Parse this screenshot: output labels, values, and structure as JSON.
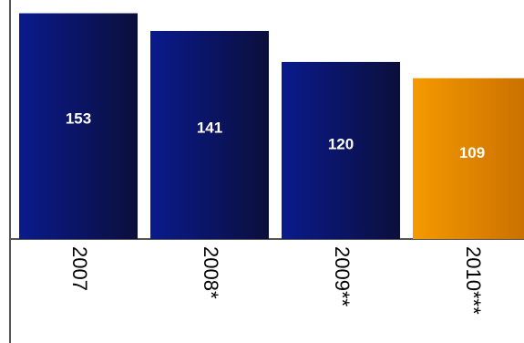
{
  "chart_data": {
    "type": "bar",
    "categories": [
      "2007",
      "2008*",
      "2009**",
      "2010***"
    ],
    "values": [
      153,
      141,
      120,
      109
    ],
    "data_labels": [
      "153",
      "141",
      "120",
      "109"
    ],
    "ylim": [
      0,
      162
    ],
    "grid": false,
    "title": "",
    "xlabel": "",
    "ylabel": "",
    "colors": {
      "bar_gradient_start": "#0a1a8c",
      "bar_gradient_end": "#0b0f3c",
      "highlight_gradient_start": "#f59a00",
      "highlight_gradient_end": "#c86e00",
      "highlight_index": 3,
      "label": "#ffffff",
      "axis": "#555555",
      "tick_text": "#000000"
    }
  }
}
